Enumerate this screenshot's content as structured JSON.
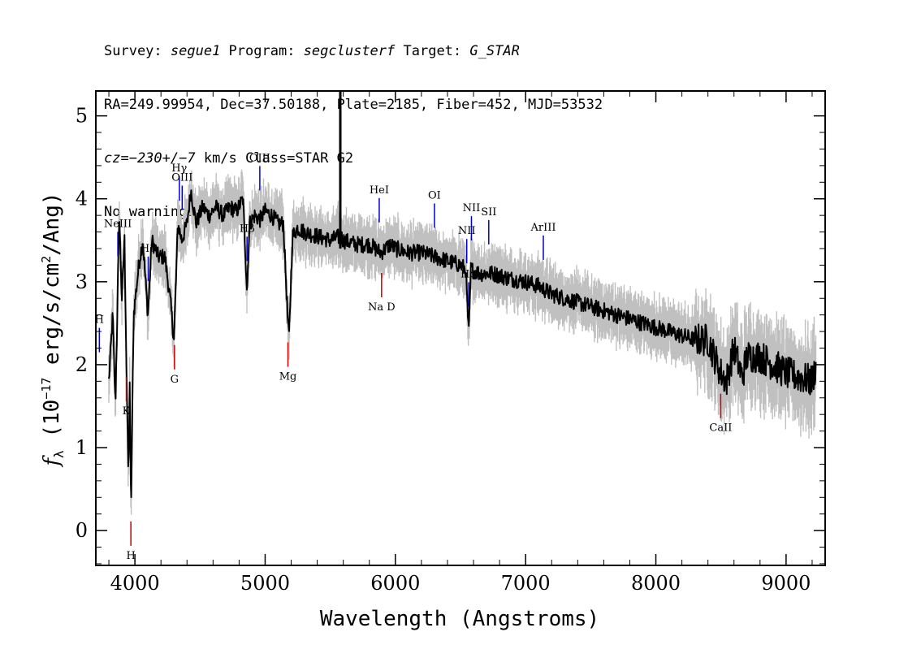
{
  "header": {
    "line1": {
      "survey_label": "Survey: ",
      "survey": "segue1",
      "program_label": " Program: ",
      "program": "segclusterf",
      "target_label": " Target: ",
      "target": "G_STAR"
    },
    "line2": "RA=249.99954, Dec=37.50188, Plate=2185, Fiber=452, MJD=53532",
    "line3": {
      "cz": "cz=−230+/−7",
      "rest": " km/s Class=STAR G2"
    },
    "line4": "No warnings."
  },
  "chart_data": {
    "type": "line",
    "xlabel": "Wavelength (Angstroms)",
    "ylabel_parts": {
      "f": "f",
      "sub": "λ",
      "pre": " (10",
      "exp1": "−17",
      "mid": " erg/s/cm",
      "exp2": "2",
      "post": "/Ang)"
    },
    "xlim": [
      3700,
      9300
    ],
    "ylim": [
      -0.42,
      5.3
    ],
    "xticks": [
      4000,
      5000,
      6000,
      7000,
      8000,
      9000
    ],
    "yticks": [
      0,
      1,
      2,
      3,
      4,
      5
    ],
    "colors": {
      "flux": "#000000",
      "error": "#c0c0c0",
      "emission": "#0000cc",
      "absorption": "#cc0000"
    },
    "series": [
      {
        "role": "flux",
        "points": [
          [
            3800,
            1.8
          ],
          [
            3830,
            2.6
          ],
          [
            3850,
            1.5
          ],
          [
            3880,
            3.8
          ],
          [
            3900,
            2.8
          ],
          [
            3920,
            3.5
          ],
          [
            3940,
            1.5
          ],
          [
            3950,
            0.6
          ],
          [
            3960,
            1.8
          ],
          [
            3970,
            0.2
          ],
          [
            3990,
            2.6
          ],
          [
            4030,
            3.2
          ],
          [
            4060,
            3.5
          ],
          [
            4100,
            2.6
          ],
          [
            4130,
            3.5
          ],
          [
            4180,
            3.3
          ],
          [
            4230,
            3.3
          ],
          [
            4270,
            2.8
          ],
          [
            4300,
            2.3
          ],
          [
            4330,
            3.7
          ],
          [
            4360,
            3.5
          ],
          [
            4400,
            3.7
          ],
          [
            4430,
            4.1
          ],
          [
            4470,
            3.7
          ],
          [
            4520,
            3.9
          ],
          [
            4570,
            3.8
          ],
          [
            4620,
            3.9
          ],
          [
            4680,
            3.8
          ],
          [
            4730,
            3.9
          ],
          [
            4780,
            3.85
          ],
          [
            4830,
            4.0
          ],
          [
            4861,
            2.9
          ],
          [
            4880,
            3.7
          ],
          [
            4920,
            3.8
          ],
          [
            4960,
            3.75
          ],
          [
            5000,
            3.85
          ],
          [
            5050,
            3.8
          ],
          [
            5100,
            3.7
          ],
          [
            5140,
            3.7
          ],
          [
            5172,
            2.6
          ],
          [
            5183,
            2.3
          ],
          [
            5210,
            3.55
          ],
          [
            5250,
            3.65
          ],
          [
            5300,
            3.6
          ],
          [
            5400,
            3.55
          ],
          [
            5500,
            3.5
          ],
          [
            5580,
            3.55
          ],
          [
            5600,
            3.5
          ],
          [
            5700,
            3.45
          ],
          [
            5800,
            3.45
          ],
          [
            5890,
            3.35
          ],
          [
            5960,
            3.45
          ],
          [
            6000,
            3.4
          ],
          [
            6100,
            3.35
          ],
          [
            6200,
            3.35
          ],
          [
            6300,
            3.3
          ],
          [
            6400,
            3.25
          ],
          [
            6500,
            3.2
          ],
          [
            6540,
            3.15
          ],
          [
            6563,
            2.35
          ],
          [
            6580,
            3.15
          ],
          [
            6650,
            3.1
          ],
          [
            6750,
            3.1
          ],
          [
            6850,
            3.05
          ],
          [
            7000,
            3.0
          ],
          [
            7100,
            2.95
          ],
          [
            7200,
            2.85
          ],
          [
            7300,
            2.8
          ],
          [
            7400,
            2.75
          ],
          [
            7500,
            2.7
          ],
          [
            7600,
            2.65
          ],
          [
            7700,
            2.6
          ],
          [
            7800,
            2.55
          ],
          [
            7900,
            2.5
          ],
          [
            8000,
            2.45
          ],
          [
            8100,
            2.4
          ],
          [
            8200,
            2.35
          ],
          [
            8300,
            2.3
          ],
          [
            8400,
            2.3
          ],
          [
            8498,
            1.9
          ],
          [
            8542,
            1.8
          ],
          [
            8600,
            2.2
          ],
          [
            8662,
            1.85
          ],
          [
            8700,
            2.1
          ],
          [
            8800,
            2.1
          ],
          [
            8900,
            2.0
          ],
          [
            9000,
            1.9
          ],
          [
            9100,
            1.85
          ],
          [
            9200,
            1.8
          ],
          [
            9230,
            2.0
          ]
        ],
        "noise": {
          "flux_jitter": 0.1,
          "error_halfwidth": 0.25
        }
      }
    ],
    "spike": {
      "x": 5577,
      "ymin": 3.4,
      "ymax": 5.3
    },
    "emission_lines": [
      {
        "label": "H",
        "x": 3727
      },
      {
        "label": "NeIII",
        "x": 3869
      },
      {
        "label": "Hδ",
        "x": 4102
      },
      {
        "label": "Hγ",
        "x": 4341
      },
      {
        "label": "OIII",
        "x": 4363
      },
      {
        "label": "Hβ",
        "x": 4861
      },
      {
        "label": "OIII",
        "x": 4959
      },
      {
        "label": "HeI",
        "x": 5876
      },
      {
        "label": "OI",
        "x": 6300
      },
      {
        "label": "NII",
        "x": 6548
      },
      {
        "label": "Hα",
        "x": 6563
      },
      {
        "label": "NII",
        "x": 6584
      },
      {
        "label": "SII",
        "x": 6717
      },
      {
        "label": "ArIII",
        "x": 7136
      }
    ],
    "absorption_lines": [
      {
        "label": "K",
        "x": 3934
      },
      {
        "label": "H",
        "x": 3969
      },
      {
        "label": "G",
        "x": 4304
      },
      {
        "label": "Mg",
        "x": 5175
      },
      {
        "label": "Na D",
        "x": 5894
      },
      {
        "label": "CaII",
        "x": 8498
      }
    ]
  }
}
